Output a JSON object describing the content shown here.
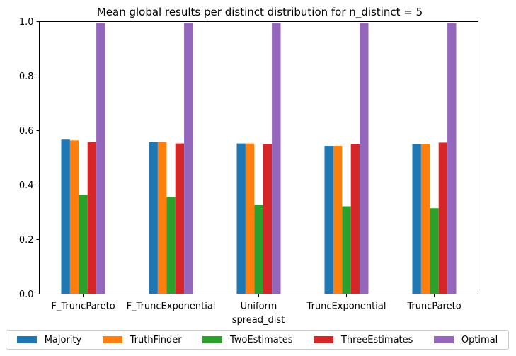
{
  "chart_data": {
    "type": "bar",
    "title": "Mean global results per distinct distribution for n_distinct = 5",
    "xlabel": "spread_dist",
    "ylabel": "",
    "ylim": [
      0,
      1.0
    ],
    "yticks": [
      0.0,
      0.2,
      0.4,
      0.6,
      0.8,
      1.0
    ],
    "ytick_labels": [
      "0.0",
      "0.2",
      "0.4",
      "0.6",
      "0.8",
      "1.0"
    ],
    "categories": [
      "F_TruncPareto",
      "F_TruncExponential",
      "Uniform",
      "TruncExponential",
      "TruncPareto"
    ],
    "series": [
      {
        "name": "Majority",
        "color": "#1f77b4",
        "values": [
          0.567,
          0.558,
          0.553,
          0.544,
          0.551
        ]
      },
      {
        "name": "TruthFinder",
        "color": "#ff7f0e",
        "values": [
          0.564,
          0.558,
          0.553,
          0.544,
          0.551
        ]
      },
      {
        "name": "TwoEstimates",
        "color": "#2ca02c",
        "values": [
          0.363,
          0.356,
          0.327,
          0.322,
          0.315
        ]
      },
      {
        "name": "ThreeEstimates",
        "color": "#d62728",
        "values": [
          0.558,
          0.553,
          0.55,
          0.55,
          0.556
        ]
      },
      {
        "name": "Optimal",
        "color": "#9467bd",
        "values": [
          0.995,
          0.995,
          0.995,
          0.995,
          0.995
        ]
      }
    ],
    "legend_position": "bottom"
  }
}
